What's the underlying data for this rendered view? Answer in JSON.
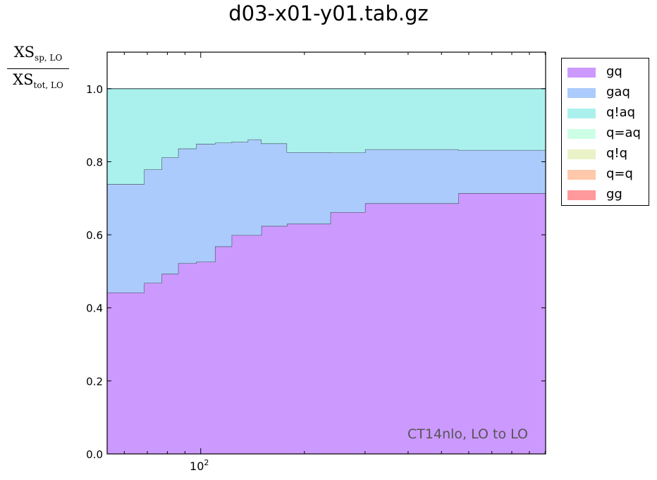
{
  "title": "d03-x01-y01.tab.gz",
  "annotation": "CT14nlo, LO to LO",
  "chart_data": {
    "type": "area",
    "stacked": true,
    "step": true,
    "title": "d03-x01-y01.tab.gz",
    "ylabel": {
      "num_main": "XS",
      "num_sub": "sp, LO",
      "den_main": "XS",
      "den_sub": "tot, LO"
    },
    "xlabel": "",
    "xscale": "log",
    "xlim": [
      53.5,
      1003
    ],
    "ylim": [
      0.0,
      1.1
    ],
    "x_tick_labels": [
      {
        "value": 100,
        "base": "10",
        "exp": "2"
      }
    ],
    "y_ticks": [
      0.0,
      0.2,
      0.4,
      0.6,
      0.8,
      1.0
    ],
    "y_tick_labels": [
      "0.0",
      "0.2",
      "0.4",
      "0.6",
      "0.8",
      "1.0"
    ],
    "bin_edges": [
      53.5,
      60.5,
      68.5,
      77,
      86,
      97,
      110,
      123,
      137,
      150,
      178,
      200,
      238,
      300,
      400,
      560,
      700,
      1003
    ],
    "series": [
      {
        "name": "gq",
        "color": "#cc99ff",
        "values": [
          0.442,
          0.442,
          0.468,
          0.493,
          0.522,
          0.526,
          0.568,
          0.599,
          0.599,
          0.624,
          0.63,
          0.63,
          0.662,
          0.686,
          0.686,
          0.714,
          0.714
        ]
      },
      {
        "name": "gaq",
        "color": "#abcbfc",
        "values": [
          0.297,
          0.297,
          0.311,
          0.319,
          0.314,
          0.323,
          0.284,
          0.256,
          0.262,
          0.226,
          0.196,
          0.196,
          0.163,
          0.148,
          0.148,
          0.118,
          0.118
        ]
      },
      {
        "name": "q!aq",
        "color": "#aaf1ee",
        "values": [
          0.261,
          0.261,
          0.221,
          0.188,
          0.164,
          0.151,
          0.148,
          0.145,
          0.139,
          0.15,
          0.174,
          0.174,
          0.175,
          0.166,
          0.166,
          0.168,
          0.168
        ]
      },
      {
        "name": "q=aq",
        "color": "#ccffe5",
        "values": [
          0,
          0,
          0,
          0,
          0,
          0,
          0,
          0,
          0,
          0,
          0,
          0,
          0,
          0,
          0,
          0,
          0
        ]
      },
      {
        "name": "q!q",
        "color": "#eaf2c8",
        "values": [
          0,
          0,
          0,
          0,
          0,
          0,
          0,
          0,
          0,
          0,
          0,
          0,
          0,
          0,
          0,
          0,
          0
        ]
      },
      {
        "name": "q=q",
        "color": "#ffc8aa",
        "values": [
          0,
          0,
          0,
          0,
          0,
          0,
          0,
          0,
          0,
          0,
          0,
          0,
          0,
          0,
          0,
          0,
          0
        ]
      },
      {
        "name": "gg",
        "color": "#ff999b",
        "values": [
          0,
          0,
          0,
          0,
          0,
          0,
          0,
          0,
          0,
          0,
          0,
          0,
          0,
          0,
          0,
          0,
          0
        ]
      }
    ],
    "legend_position": "outside-right-top",
    "grid": false
  }
}
